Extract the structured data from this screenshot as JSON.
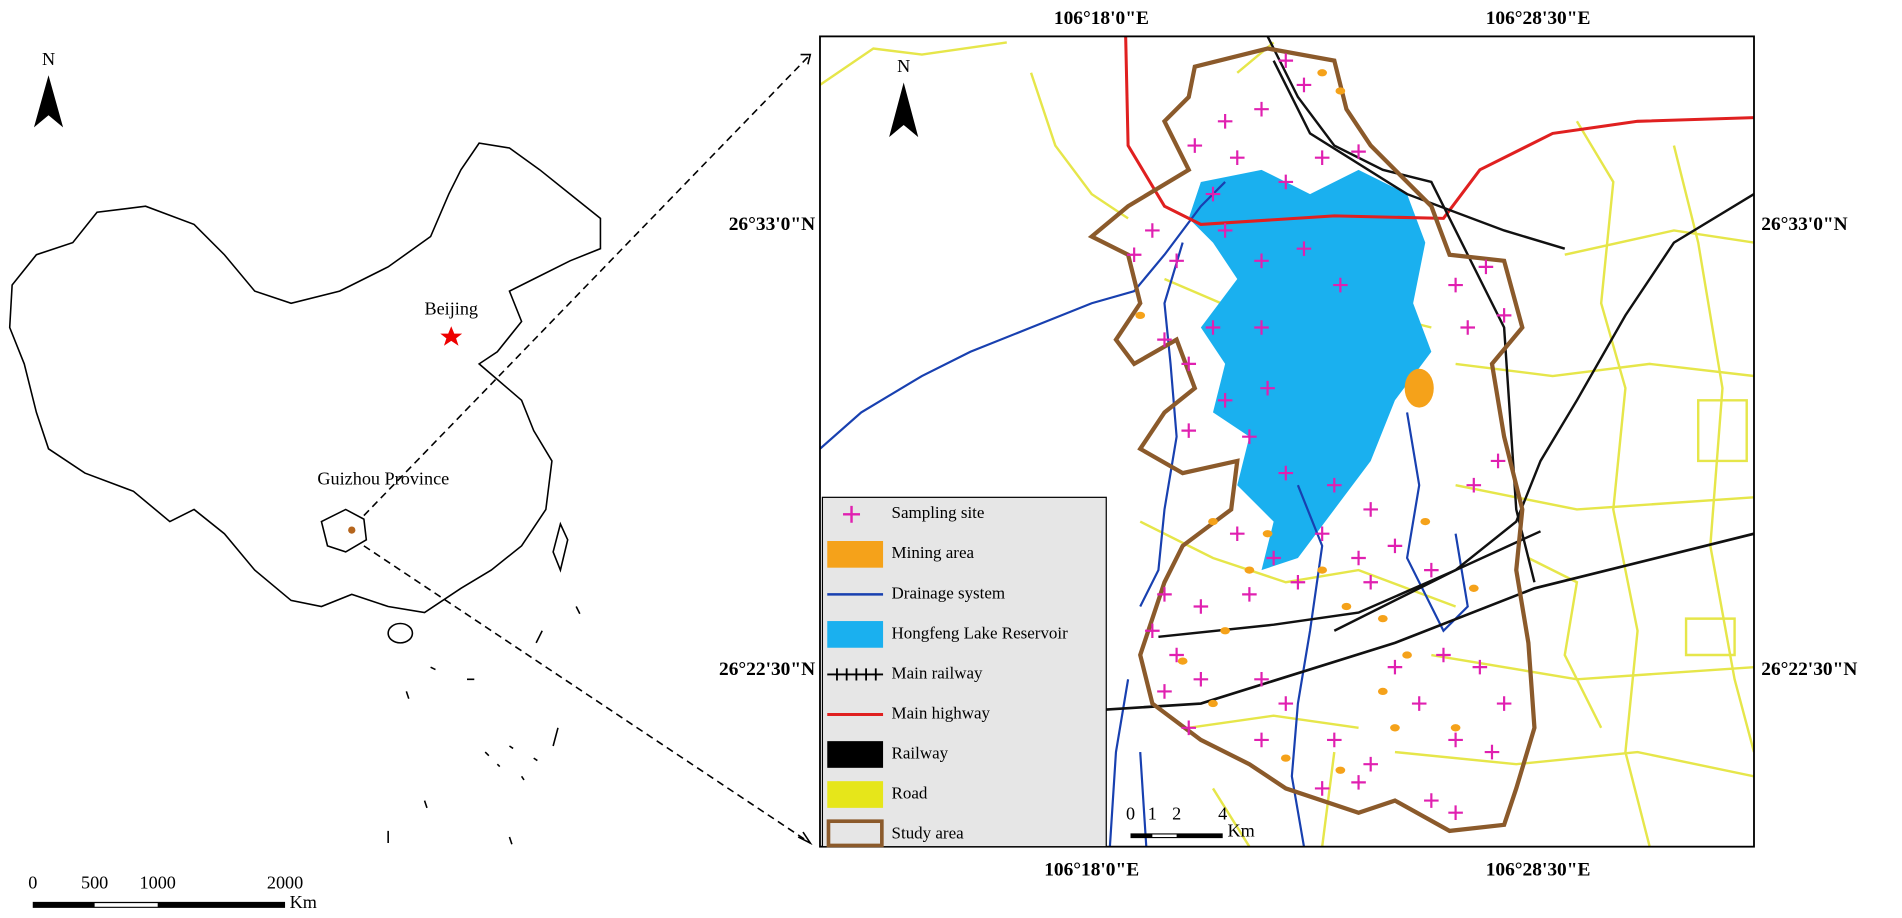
{
  "overview_map": {
    "north_label": "N",
    "city_label": "Beijing",
    "province_label": "Guizhou Province",
    "scale_labels": [
      "0",
      "500",
      "1000",
      "2000"
    ],
    "scale_unit": "Km"
  },
  "study_map": {
    "north_label": "N",
    "top_labels": [
      "106°18'0\"E",
      "106°28'30\"E"
    ],
    "bottom_labels": [
      "106°18'0\"E",
      "106°28'30\"E"
    ],
    "left_labels": [
      "26°33'0\"N",
      "26°22'30\"N"
    ],
    "right_labels": [
      "26°33'0\"N",
      "26°22'30\"N"
    ],
    "legend": [
      "Sampling site",
      "Mining area",
      "Drainage system",
      "Hongfeng Lake Reservoir",
      "Main railway",
      "Main highway",
      "Railway",
      "Road",
      "Study area"
    ],
    "scale_labels": [
      "0",
      "1",
      "2",
      "4"
    ],
    "scale_unit": "Km"
  }
}
